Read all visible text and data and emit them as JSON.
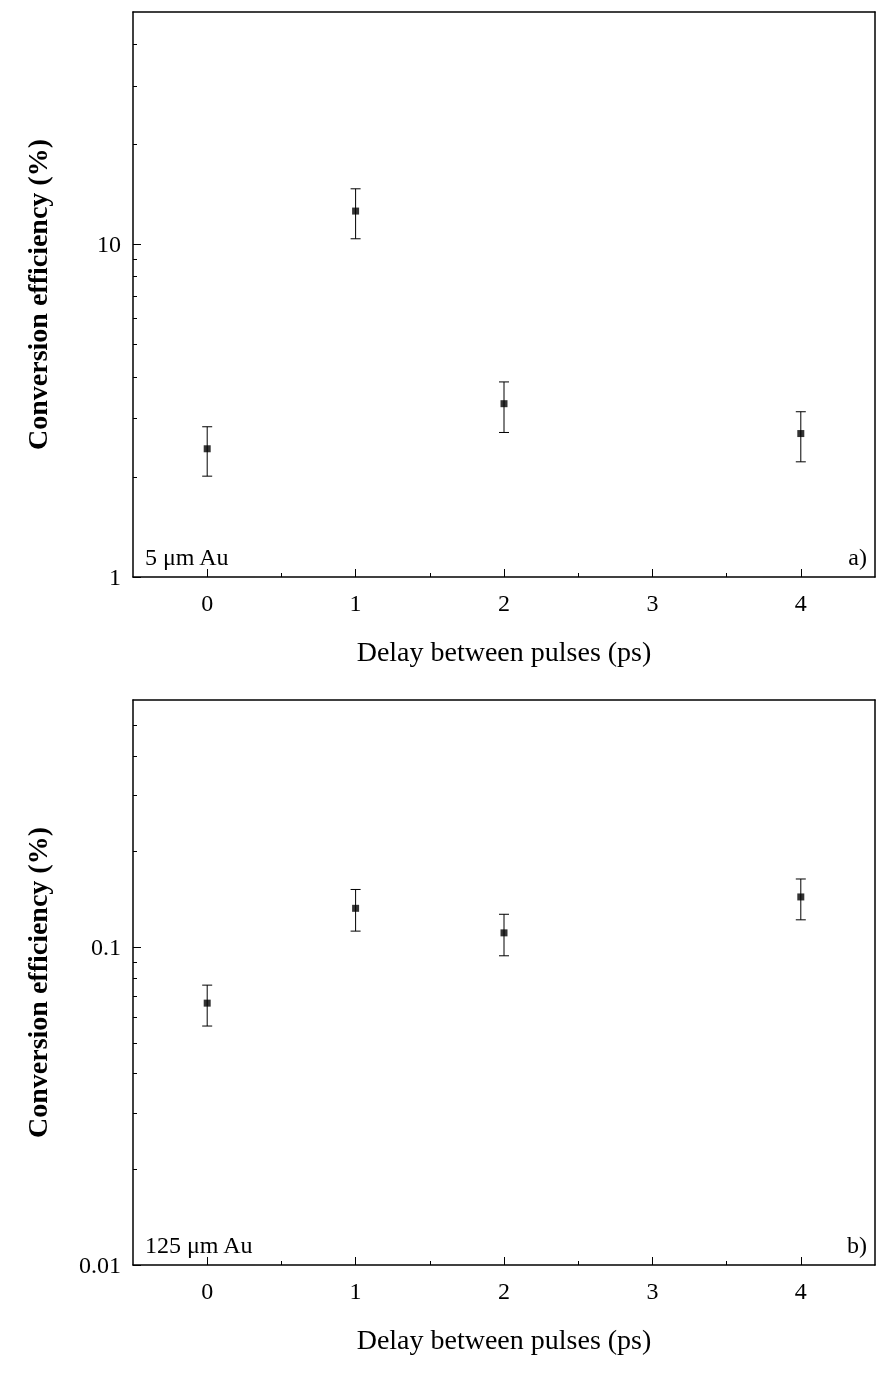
{
  "chart_data": [
    {
      "type": "scatter",
      "xlabel": "Delay between pulses (ps)",
      "ylabel": "Conversion efficiency (%)",
      "x": [
        0,
        1,
        2,
        4
      ],
      "values": [
        2.43,
        12.6,
        3.32,
        2.7
      ],
      "errors": [
        [
          2.01,
          2.83
        ],
        [
          10.4,
          14.7
        ],
        [
          2.72,
          3.86
        ],
        [
          2.22,
          3.14
        ]
      ],
      "color": "#000000",
      "marker": "square",
      "log": "y",
      "xlim": [
        -0.5,
        4.5
      ],
      "xticks": [
        0,
        1,
        2,
        3,
        4
      ],
      "ylim": [
        1,
        50
      ],
      "yticks": [
        1,
        10
      ],
      "grid": false,
      "annotations": [
        "5 μm Au",
        "a)"
      ]
    },
    {
      "type": "scatter",
      "xlabel": "Delay between pulses (ps)",
      "ylabel": "Conversion efficiency (%)",
      "x": [
        0,
        1,
        2,
        4
      ],
      "values": [
        0.0667,
        0.1326,
        0.111,
        0.144
      ],
      "errors": [
        [
          0.0565,
          0.076
        ],
        [
          0.1124,
          0.152
        ],
        [
          0.094,
          0.127
        ],
        [
          0.122,
          0.164
        ]
      ],
      "color": "#000000",
      "marker": "square",
      "log": "y",
      "xlim": [
        -0.5,
        4.5
      ],
      "xticks": [
        0,
        1,
        2,
        3,
        4
      ],
      "ylim": [
        0.01,
        0.6
      ],
      "yticks": [
        0.01,
        0.1
      ],
      "grid": false,
      "annotations": [
        "125 μm Au",
        "b)"
      ]
    }
  ]
}
